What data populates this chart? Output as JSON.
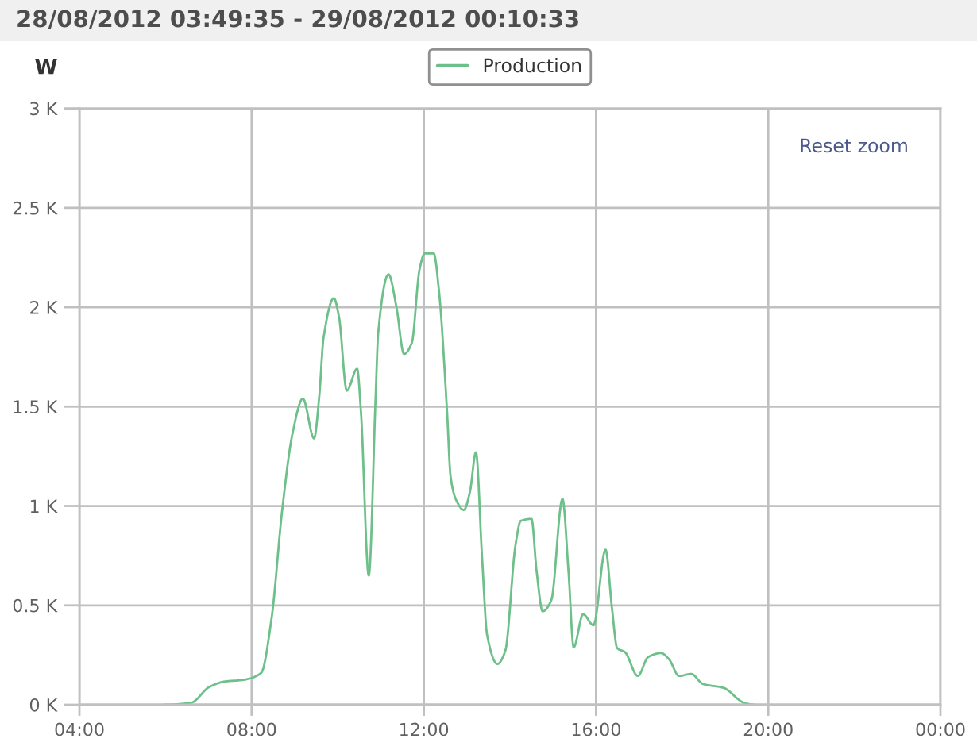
{
  "chart_data": {
    "type": "line",
    "title": "28/08/2012 03:49:35 - 29/08/2012 00:10:33",
    "ylabel": "W",
    "annotations": [
      "Reset zoom"
    ],
    "series": [
      {
        "name": "Production",
        "color": "#6dc08a",
        "x": [
          5.97,
          6.59,
          7.02,
          7.38,
          7.8,
          8.22,
          8.46,
          8.71,
          8.95,
          9.19,
          9.45,
          9.57,
          9.67,
          9.91,
          10.03,
          10.21,
          10.45,
          10.54,
          10.72,
          10.88,
          10.94,
          11.18,
          11.36,
          11.54,
          11.72,
          11.9,
          12.02,
          12.23,
          12.35,
          12.54,
          12.62,
          12.75,
          12.93,
          13.07,
          13.21,
          13.35,
          13.47,
          13.71,
          13.89,
          14.13,
          14.25,
          14.5,
          14.62,
          14.76,
          14.96,
          15.22,
          15.36,
          15.48,
          15.7,
          15.94,
          16.22,
          16.37,
          16.49,
          16.67,
          16.97,
          17.21,
          17.51,
          17.69,
          17.93,
          18.21,
          18.48,
          18.96,
          19.44,
          19.68
        ],
        "values": [
          0,
          10,
          90,
          117,
          125,
          160,
          430,
          980,
          1365,
          1540,
          1340,
          1550,
          1845,
          2045,
          1950,
          1580,
          1690,
          1470,
          650,
          1550,
          1870,
          2165,
          2005,
          1765,
          1820,
          2190,
          2270,
          2270,
          2085,
          1470,
          1150,
          1030,
          980,
          1070,
          1270,
          750,
          350,
          205,
          270,
          805,
          925,
          935,
          670,
          470,
          525,
          1035,
          670,
          290,
          455,
          400,
          780,
          485,
          285,
          265,
          145,
          240,
          260,
          230,
          145,
          155,
          105,
          85,
          10,
          0
        ]
      }
    ],
    "xlim": [
      4,
      24
    ],
    "xticks": [
      {
        "value": 4,
        "label": "04:00"
      },
      {
        "value": 8,
        "label": "08:00"
      },
      {
        "value": 12,
        "label": "12:00"
      },
      {
        "value": 16,
        "label": "16:00"
      },
      {
        "value": 20,
        "label": "20:00"
      },
      {
        "value": 24,
        "label": "00:00"
      }
    ],
    "ylim": [
      0,
      3000
    ],
    "yticks": [
      {
        "value": 0,
        "label": "0 K"
      },
      {
        "value": 500,
        "label": "0.5 K"
      },
      {
        "value": 1000,
        "label": "1 K"
      },
      {
        "value": 1500,
        "label": "1.5 K"
      },
      {
        "value": 2000,
        "label": "2 K"
      },
      {
        "value": 2500,
        "label": "2.5 K"
      },
      {
        "value": 3000,
        "label": "3 K"
      }
    ],
    "grid": true,
    "legend": "top"
  }
}
